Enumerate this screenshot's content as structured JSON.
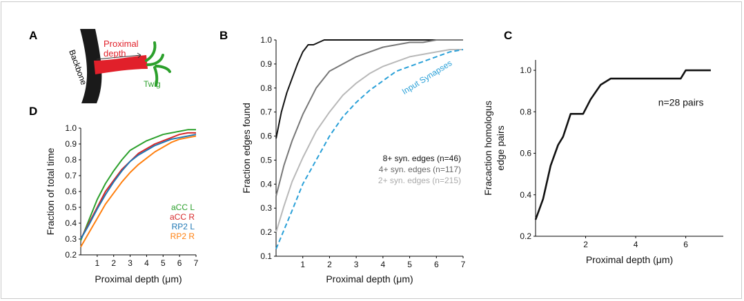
{
  "panel_letters": {
    "a": "A",
    "b": "B",
    "c": "C",
    "d": "D"
  },
  "schematic": {
    "backbone_label": "Backbone",
    "proximal_label_line1": "Proximal",
    "proximal_label_line2": "depth",
    "twig_label": "Twig",
    "colors": {
      "backbone": "#1a1a1a",
      "proximal": "#e1202a",
      "twig": "#2ca02c"
    }
  },
  "chart_data": [
    {
      "id": "D",
      "type": "line",
      "xlabel": "Proximal depth (μm)",
      "ylabel": "Fraction of total time",
      "xlim": [
        0,
        7
      ],
      "ylim": [
        0.2,
        1.0
      ],
      "xticks": [
        1,
        2,
        3,
        4,
        5,
        6,
        7
      ],
      "yticks": [
        0.2,
        0.3,
        0.4,
        0.5,
        0.6,
        0.7,
        0.8,
        0.9,
        1.0
      ],
      "ytick_labels": [
        "0.2",
        "0.3",
        "0.4",
        "0.5",
        "0.6",
        "0.7",
        "0.8",
        "0.9",
        "1.0"
      ],
      "legend_position": "middle-right",
      "series": [
        {
          "name": "aCC L",
          "color": "#2ca02c",
          "x": [
            0,
            0.5,
            1,
            1.5,
            2,
            2.5,
            3,
            3.5,
            4,
            4.5,
            5,
            5.5,
            6,
            6.5,
            7
          ],
          "y": [
            0.29,
            0.42,
            0.55,
            0.65,
            0.73,
            0.8,
            0.86,
            0.89,
            0.92,
            0.94,
            0.96,
            0.97,
            0.98,
            0.99,
            0.99
          ]
        },
        {
          "name": "aCC R",
          "color": "#d62728",
          "x": [
            0,
            0.5,
            1,
            1.5,
            2,
            2.5,
            3,
            3.5,
            4,
            4.5,
            5,
            5.5,
            6,
            6.5,
            7
          ],
          "y": [
            0.3,
            0.4,
            0.5,
            0.6,
            0.67,
            0.74,
            0.79,
            0.84,
            0.87,
            0.9,
            0.92,
            0.94,
            0.96,
            0.97,
            0.97
          ]
        },
        {
          "name": "RP2 L",
          "color": "#1f77b4",
          "x": [
            0,
            0.5,
            1,
            1.5,
            2,
            2.5,
            3,
            3.5,
            4,
            4.5,
            5,
            5.5,
            6,
            6.5,
            7
          ],
          "y": [
            0.3,
            0.39,
            0.49,
            0.58,
            0.66,
            0.73,
            0.79,
            0.83,
            0.86,
            0.89,
            0.91,
            0.93,
            0.94,
            0.95,
            0.96
          ]
        },
        {
          "name": "RP2 R",
          "color": "#ff7f0e",
          "x": [
            0,
            0.5,
            1,
            1.5,
            2,
            2.5,
            3,
            3.5,
            4,
            4.5,
            5,
            5.5,
            6,
            6.5,
            7
          ],
          "y": [
            0.25,
            0.34,
            0.43,
            0.52,
            0.59,
            0.66,
            0.72,
            0.77,
            0.81,
            0.85,
            0.88,
            0.91,
            0.93,
            0.94,
            0.95
          ]
        }
      ]
    },
    {
      "id": "B",
      "type": "line",
      "xlabel": "Proximal depth (μm)",
      "ylabel": "Fraction edges found",
      "xlim": [
        0,
        7
      ],
      "ylim": [
        0.1,
        1.0
      ],
      "xticks": [
        1,
        2,
        3,
        4,
        5,
        6,
        7
      ],
      "yticks": [
        0.1,
        0.2,
        0.3,
        0.4,
        0.5,
        0.6,
        0.7,
        0.8,
        0.9,
        1.0
      ],
      "ytick_labels": [
        "0.1",
        "0.2",
        "0.3",
        "0.4",
        "0.5",
        "0.6",
        "0.7",
        "0.8",
        "0.9",
        "1.0"
      ],
      "legend_position": "middle-right",
      "series": [
        {
          "name": "8+ syn. edges (n=46)",
          "color": "#111111",
          "dash": false,
          "x": [
            0,
            0.2,
            0.4,
            0.6,
            0.8,
            1.0,
            1.2,
            1.4,
            1.6,
            1.8,
            2,
            3,
            4,
            5,
            6,
            7
          ],
          "y": [
            0.59,
            0.7,
            0.78,
            0.84,
            0.9,
            0.95,
            0.98,
            0.98,
            0.99,
            1.0,
            1.0,
            1.0,
            1.0,
            1.0,
            1.0,
            1.0
          ]
        },
        {
          "name": "4+ syn. edges (n=117)",
          "color": "#777777",
          "dash": false,
          "x": [
            0,
            0.3,
            0.6,
            1.0,
            1.5,
            2.0,
            2.5,
            3.0,
            3.5,
            4.0,
            4.5,
            5.0,
            5.5,
            6.0,
            6.5,
            7.0
          ],
          "y": [
            0.35,
            0.48,
            0.58,
            0.69,
            0.8,
            0.87,
            0.9,
            0.93,
            0.95,
            0.97,
            0.98,
            0.99,
            0.99,
            1.0,
            1.0,
            1.0
          ]
        },
        {
          "name": "2+ syn. edges (n=215)",
          "color": "#b8b8b8",
          "dash": false,
          "x": [
            0,
            0.3,
            0.6,
            1.0,
            1.5,
            2.0,
            2.5,
            3.0,
            3.5,
            4.0,
            4.5,
            5.0,
            5.5,
            6.0,
            6.5,
            7.0
          ],
          "y": [
            0.2,
            0.31,
            0.41,
            0.51,
            0.62,
            0.7,
            0.77,
            0.82,
            0.86,
            0.89,
            0.91,
            0.93,
            0.94,
            0.95,
            0.96,
            0.96
          ]
        },
        {
          "name": "Input Synapses",
          "color": "#29a0d8",
          "dash": true,
          "x": [
            0,
            0.3,
            0.6,
            1.0,
            1.5,
            2.0,
            2.5,
            3.0,
            3.5,
            4.0,
            4.5,
            5.0,
            5.5,
            6.0,
            6.5,
            7.0
          ],
          "y": [
            0.13,
            0.21,
            0.29,
            0.4,
            0.5,
            0.6,
            0.68,
            0.74,
            0.79,
            0.83,
            0.87,
            0.89,
            0.91,
            0.93,
            0.95,
            0.96
          ]
        }
      ]
    },
    {
      "id": "C",
      "type": "line",
      "xlabel": "Proximal depth (μm)",
      "ylabel_line1": "Fracaction homologus",
      "ylabel_line2": "edge pairs",
      "annotation": "n=28 pairs",
      "xlim": [
        0,
        7.5
      ],
      "ylim": [
        0.2,
        1.05
      ],
      "xticks": [
        2,
        4,
        6
      ],
      "yticks": [
        0.2,
        0.4,
        0.6,
        0.8,
        1.0
      ],
      "ytick_labels": [
        "0.2",
        "0.4",
        "0.6",
        "0.8",
        "1.0"
      ],
      "series": [
        {
          "name": "",
          "color": "#111111",
          "x": [
            0,
            0.3,
            0.6,
            0.9,
            1.1,
            1.4,
            1.7,
            1.9,
            2.2,
            2.6,
            3.0,
            3.5,
            4.0,
            4.5,
            5.0,
            5.5,
            5.8,
            6.0,
            6.5,
            7.0
          ],
          "y": [
            0.28,
            0.38,
            0.54,
            0.64,
            0.68,
            0.79,
            0.79,
            0.79,
            0.86,
            0.93,
            0.96,
            0.96,
            0.96,
            0.96,
            0.96,
            0.96,
            0.96,
            1.0,
            1.0,
            1.0
          ]
        }
      ]
    }
  ]
}
